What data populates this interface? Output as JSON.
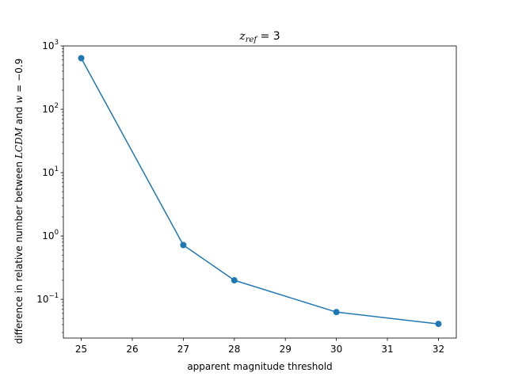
{
  "chart_data": {
    "type": "line",
    "title_parts": {
      "var": "z",
      "sub": "ref",
      "rest": " = 3"
    },
    "xlabel": "apparent magnitude threshold",
    "ylabel_parts": {
      "prefix": "difference in relative number between ",
      "model": "LCDM",
      "middle": " and ",
      "w": "w",
      "suffix": " = −0.9"
    },
    "xscale": "linear",
    "yscale": "log",
    "xlim": [
      24.65,
      32.35
    ],
    "ylim": [
      0.0245,
      1000
    ],
    "grid": false,
    "x_ticks": [
      25,
      26,
      27,
      28,
      29,
      30,
      31,
      32
    ],
    "y_ticks": [
      {
        "value": 0.1,
        "base": "10",
        "exp": "−1"
      },
      {
        "value": 1,
        "base": "10",
        "exp": "0"
      },
      {
        "value": 10,
        "base": "10",
        "exp": "1"
      },
      {
        "value": 100,
        "base": "10",
        "exp": "2"
      },
      {
        "value": 1000,
        "base": "10",
        "exp": "3"
      }
    ],
    "series": [
      {
        "color": "#1f77b4",
        "marker": "circle",
        "x": [
          25,
          27,
          28,
          30,
          32
        ],
        "y": [
          640,
          0.72,
          0.2,
          0.063,
          0.041
        ]
      }
    ]
  }
}
